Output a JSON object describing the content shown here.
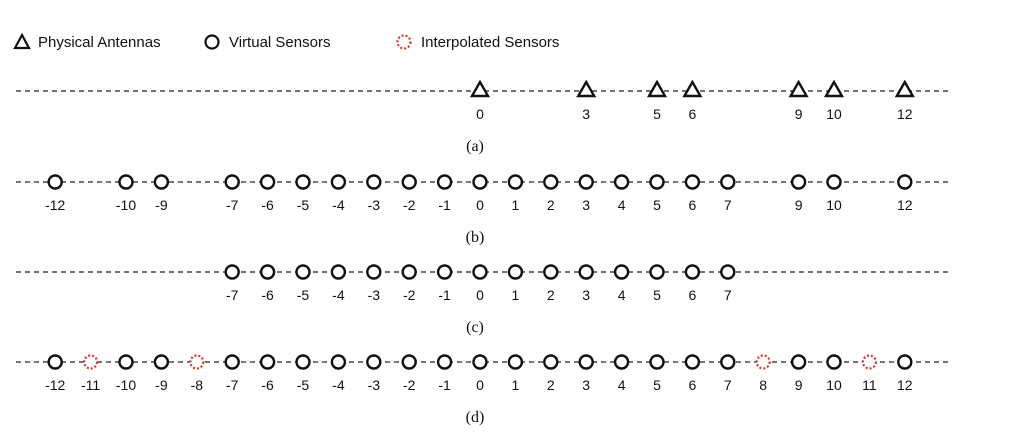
{
  "legend": {
    "physical": "Physical Antennas",
    "virtual": "Virtual Sensors",
    "interpolated": "Interpolated Sensors"
  },
  "colors": {
    "line": "#222222",
    "marker": "#111111",
    "interpolated": "#d9362b"
  },
  "rows": [
    {
      "caption": "(a)",
      "markers": [
        {
          "pos": 0,
          "kind": "triangle",
          "label": "0"
        },
        {
          "pos": 3,
          "kind": "triangle",
          "label": "3"
        },
        {
          "pos": 5,
          "kind": "triangle",
          "label": "5"
        },
        {
          "pos": 6,
          "kind": "triangle",
          "label": "6"
        },
        {
          "pos": 9,
          "kind": "triangle",
          "label": "9"
        },
        {
          "pos": 10,
          "kind": "triangle",
          "label": "10"
        },
        {
          "pos": 12,
          "kind": "triangle",
          "label": "12"
        }
      ]
    },
    {
      "caption": "(b)",
      "markers": [
        {
          "pos": -12,
          "kind": "circle",
          "label": "-12"
        },
        {
          "pos": -10,
          "kind": "circle",
          "label": "-10"
        },
        {
          "pos": -9,
          "kind": "circle",
          "label": "-9"
        },
        {
          "pos": -7,
          "kind": "circle",
          "label": "-7"
        },
        {
          "pos": -6,
          "kind": "circle",
          "label": "-6"
        },
        {
          "pos": -5,
          "kind": "circle",
          "label": "-5"
        },
        {
          "pos": -4,
          "kind": "circle",
          "label": "-4"
        },
        {
          "pos": -3,
          "kind": "circle",
          "label": "-3"
        },
        {
          "pos": -2,
          "kind": "circle",
          "label": "-2"
        },
        {
          "pos": -1,
          "kind": "circle",
          "label": "-1"
        },
        {
          "pos": 0,
          "kind": "circle",
          "label": "0"
        },
        {
          "pos": 1,
          "kind": "circle",
          "label": "1"
        },
        {
          "pos": 2,
          "kind": "circle",
          "label": "2"
        },
        {
          "pos": 3,
          "kind": "circle",
          "label": "3"
        },
        {
          "pos": 4,
          "kind": "circle",
          "label": "4"
        },
        {
          "pos": 5,
          "kind": "circle",
          "label": "5"
        },
        {
          "pos": 6,
          "kind": "circle",
          "label": "6"
        },
        {
          "pos": 7,
          "kind": "circle",
          "label": "7"
        },
        {
          "pos": 9,
          "kind": "circle",
          "label": "9"
        },
        {
          "pos": 10,
          "kind": "circle",
          "label": "10"
        },
        {
          "pos": 12,
          "kind": "circle",
          "label": "12"
        }
      ]
    },
    {
      "caption": "(c)",
      "markers": [
        {
          "pos": -7,
          "kind": "circle",
          "label": "-7"
        },
        {
          "pos": -6,
          "kind": "circle",
          "label": "-6"
        },
        {
          "pos": -5,
          "kind": "circle",
          "label": "-5"
        },
        {
          "pos": -4,
          "kind": "circle",
          "label": "-4"
        },
        {
          "pos": -3,
          "kind": "circle",
          "label": "-3"
        },
        {
          "pos": -2,
          "kind": "circle",
          "label": "-2"
        },
        {
          "pos": -1,
          "kind": "circle",
          "label": "-1"
        },
        {
          "pos": 0,
          "kind": "circle",
          "label": "0"
        },
        {
          "pos": 1,
          "kind": "circle",
          "label": "1"
        },
        {
          "pos": 2,
          "kind": "circle",
          "label": "2"
        },
        {
          "pos": 3,
          "kind": "circle",
          "label": "3"
        },
        {
          "pos": 4,
          "kind": "circle",
          "label": "4"
        },
        {
          "pos": 5,
          "kind": "circle",
          "label": "5"
        },
        {
          "pos": 6,
          "kind": "circle",
          "label": "6"
        },
        {
          "pos": 7,
          "kind": "circle",
          "label": "7"
        }
      ]
    },
    {
      "caption": "(d)",
      "markers": [
        {
          "pos": -12,
          "kind": "circle",
          "label": "-12"
        },
        {
          "pos": -11,
          "kind": "interpolated",
          "label": "-11"
        },
        {
          "pos": -10,
          "kind": "circle",
          "label": "-10"
        },
        {
          "pos": -9,
          "kind": "circle",
          "label": "-9"
        },
        {
          "pos": -8,
          "kind": "interpolated",
          "label": "-8"
        },
        {
          "pos": -7,
          "kind": "circle",
          "label": "-7"
        },
        {
          "pos": -6,
          "kind": "circle",
          "label": "-6"
        },
        {
          "pos": -5,
          "kind": "circle",
          "label": "-5"
        },
        {
          "pos": -4,
          "kind": "circle",
          "label": "-4"
        },
        {
          "pos": -3,
          "kind": "circle",
          "label": "-3"
        },
        {
          "pos": -2,
          "kind": "circle",
          "label": "-2"
        },
        {
          "pos": -1,
          "kind": "circle",
          "label": "-1"
        },
        {
          "pos": 0,
          "kind": "circle",
          "label": "0"
        },
        {
          "pos": 1,
          "kind": "circle",
          "label": "1"
        },
        {
          "pos": 2,
          "kind": "circle",
          "label": "2"
        },
        {
          "pos": 3,
          "kind": "circle",
          "label": "3"
        },
        {
          "pos": 4,
          "kind": "circle",
          "label": "4"
        },
        {
          "pos": 5,
          "kind": "circle",
          "label": "5"
        },
        {
          "pos": 6,
          "kind": "circle",
          "label": "6"
        },
        {
          "pos": 7,
          "kind": "circle",
          "label": "7"
        },
        {
          "pos": 8,
          "kind": "interpolated",
          "label": "8"
        },
        {
          "pos": 9,
          "kind": "circle",
          "label": "9"
        },
        {
          "pos": 10,
          "kind": "circle",
          "label": "10"
        },
        {
          "pos": 11,
          "kind": "interpolated",
          "label": "11"
        },
        {
          "pos": 12,
          "kind": "circle",
          "label": "12"
        }
      ]
    }
  ]
}
